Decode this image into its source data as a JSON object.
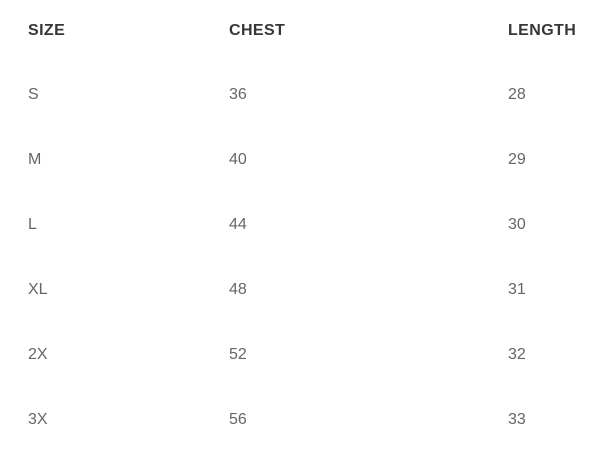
{
  "table": {
    "headers": [
      "SIZE",
      "CHEST",
      "LENGTH"
    ],
    "rows": [
      [
        "S",
        "36",
        "28"
      ],
      [
        "M",
        "40",
        "29"
      ],
      [
        "L",
        "44",
        "30"
      ],
      [
        "XL",
        "48",
        "31"
      ],
      [
        "2X",
        "52",
        "32"
      ],
      [
        "3X",
        "56",
        "33"
      ]
    ]
  },
  "colors": {
    "background": "#ffffff",
    "header_text": "#373737",
    "body_text": "#666666"
  }
}
